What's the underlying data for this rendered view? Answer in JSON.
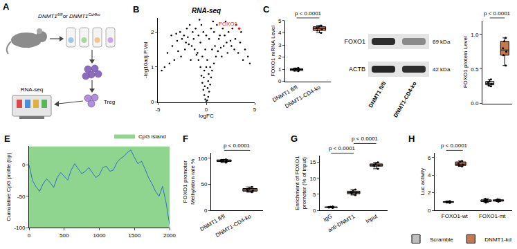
{
  "schematic": {
    "panel": "A",
    "genotypes": [
      {
        "base": "DNMT1",
        "sup": "fl/fl"
      },
      {
        "base": "DNMT1",
        "sup": "Cd4ko"
      }
    ],
    "joiner": "or",
    "steps": [
      "RNA-seq",
      "Treg"
    ]
  },
  "blot": {
    "rows": [
      {
        "name": "FOXO1",
        "size": "69 kDa"
      },
      {
        "name": "ACTB",
        "size": "42 kDa"
      }
    ],
    "lanes": [
      "DNMT1 fl/fl",
      "DNMT1-CD4-ko"
    ]
  },
  "chart_data": [
    {
      "panel": "B",
      "type": "scatter",
      "title": "RNA-seq",
      "color": "#000000",
      "x": [
        0,
        0.1,
        -0.1,
        0.2,
        -0.2,
        0.3,
        -0.3,
        0.4,
        -0.4,
        0.5,
        -0.5,
        0.6,
        -0.6,
        0.8,
        -0.8,
        1.0,
        -1.0,
        1.2,
        -1.2,
        1.5,
        -1.5,
        1.8,
        -1.8,
        2.1,
        -2.1,
        2.5,
        -2.5,
        3.0,
        -3.0,
        3.5,
        -3.5,
        4.0,
        -4.0,
        0.2,
        -0.2,
        0.1,
        -0.1,
        0.3,
        -0.3,
        0.5,
        -0.5,
        0.8,
        -0.8,
        1.1,
        -1.1,
        1.4,
        -1.4,
        1.7,
        -1.7,
        2.0,
        -2.0,
        2.3,
        -2.3,
        2.7,
        -2.7,
        3.1,
        -3.1,
        0.4,
        -0.4,
        0.6,
        -0.6,
        0.9,
        -0.9,
        1.3,
        -1.3,
        1.6,
        -1.6,
        2.2,
        -2.2,
        2.6,
        -2.6,
        3.3,
        -3.3,
        3.8,
        -3.8,
        4.3,
        -4.3,
        0.15,
        -0.15,
        0.25,
        -0.25,
        0.7,
        -0.7,
        1.9,
        -1.9,
        2.9,
        -2.9,
        0,
        0,
        3.6,
        -3.6,
        4.5,
        -4.6
      ],
      "values": [
        0.02,
        0.05,
        0.08,
        0.15,
        0.2,
        0.3,
        0.35,
        0.5,
        0.55,
        0.7,
        0.75,
        0.9,
        1.0,
        1.1,
        1.2,
        1.3,
        1.35,
        1.45,
        1.5,
        1.55,
        1.6,
        1.6,
        1.65,
        1.7,
        1.7,
        1.75,
        1.8,
        1.8,
        1.75,
        1.7,
        1.6,
        1.5,
        1.4,
        0.6,
        0.9,
        1.2,
        1.5,
        1.8,
        2.0,
        2.1,
        2.2,
        2.0,
        1.9,
        2.2,
        2.1,
        1.9,
        2.0,
        2.1,
        2.2,
        2.3,
        2.1,
        2.0,
        1.9,
        2.1,
        2.0,
        2.2,
        1.95,
        1.0,
        1.3,
        1.5,
        1.7,
        1.6,
        1.4,
        1.8,
        1.8,
        1.3,
        1.2,
        1.4,
        1.5,
        1.6,
        1.3,
        1.4,
        1.2,
        1.2,
        1.1,
        1.3,
        1.0,
        0.4,
        0.45,
        0.8,
        0.7,
        2.3,
        2.35,
        1.9,
        1.85,
        1.5,
        1.45,
        1.9,
        1.0,
        2.0,
        1.9,
        1.1,
        0.9
      ],
      "xlabel": "logFC",
      "ylabel": "-log10adj.P.Val",
      "xlim": [
        -5,
        5
      ],
      "xticks": [
        -5,
        0,
        5
      ],
      "ylim": [
        0,
        2.4
      ],
      "yticks": [
        0,
        1,
        2
      ],
      "annotations": [
        {
          "text": "FOXO1",
          "x": 3.4,
          "y": 2.1,
          "color": "#e8141c"
        }
      ]
    },
    {
      "panel": "C",
      "type": "box",
      "categories": [
        "DNMT1 fl/fl",
        "DNMT1-CD4-ko"
      ],
      "values": [
        [
          0.85,
          0.95,
          1.0,
          1.05,
          1.1,
          0.9
        ],
        [
          4.0,
          4.2,
          4.3,
          4.4,
          4.6,
          4.5
        ]
      ],
      "colors": [
        "#bfbfbf",
        "#c8794a"
      ],
      "ylabel": "FOXO1 mRNA Level",
      "ylim": [
        0,
        5
      ],
      "yticks": [
        0,
        1,
        2,
        3,
        4,
        5
      ],
      "comparisons": [
        {
          "groups": [
            0,
            1
          ],
          "label": "p < 0.0001"
        }
      ]
    },
    {
      "type": "box",
      "categories": [
        "DNMT1 fl/fl",
        "DNMT1-CD4-ko"
      ],
      "values": [
        [
          0.25,
          0.28,
          0.3,
          0.32,
          0.35,
          0.27
        ],
        [
          0.55,
          0.7,
          0.75,
          0.8,
          0.9,
          0.95
        ]
      ],
      "colors": [
        "#bfbfbf",
        "#c8794a"
      ],
      "ylabel": "FOXO1 protein Level",
      "tick_labels": "y",
      "ylim": [
        0,
        1.2
      ],
      "yticks": [
        {
          "value": 0,
          "label": "0.0"
        },
        {
          "value": 0.5,
          "label": "0.5"
        },
        {
          "value": 1,
          "label": "1.0"
        }
      ],
      "comparisons": [
        {
          "groups": [
            0,
            1
          ],
          "label": "p < 0.0001"
        }
      ]
    },
    {
      "panel": "E",
      "type": "line",
      "legend": "top right",
      "ylabel": "Cumulative CpG profile (bp)",
      "xlim": [
        0,
        2000
      ],
      "xticks": [
        0,
        500,
        1000,
        1500,
        2000
      ],
      "ylim": [
        -100,
        30
      ],
      "yticks": [
        -100,
        -50,
        0
      ],
      "series": [
        {
          "name": "CpG island",
          "type": "area",
          "color": "#8fd48f"
        },
        {
          "type": "line",
          "color": "#2f6fbf",
          "x": [
            0,
            50,
            100,
            150,
            200,
            250,
            300,
            350,
            400,
            450,
            500,
            550,
            600,
            650,
            700,
            750,
            800,
            850,
            900,
            950,
            1000,
            1050,
            1100,
            1150,
            1200,
            1250,
            1300,
            1350,
            1400,
            1450,
            1500,
            1550,
            1600,
            1650,
            1700,
            1750,
            1800,
            1850,
            1900,
            1950,
            2000
          ],
          "values": [
            0,
            -25,
            -35,
            -42,
            -30,
            -22,
            -28,
            -36,
            -20,
            -12,
            -18,
            -24,
            -8,
            2,
            -6,
            -14,
            -10,
            -4,
            -12,
            -20,
            -16,
            -4,
            -2,
            -10,
            -8,
            4,
            10,
            14,
            20,
            24,
            12,
            2,
            6,
            -6,
            -20,
            -30,
            -42,
            -50,
            -34,
            -60,
            -95
          ]
        }
      ]
    },
    {
      "panel": "F",
      "type": "box",
      "categories": [
        "DNMT1 fl/fl",
        "DNMT1-CD4-ko"
      ],
      "values": [
        [
          92,
          95,
          97,
          98,
          94,
          96
        ],
        [
          35,
          38,
          40,
          42,
          45,
          37
        ]
      ],
      "colors": [
        "#bfbfbf",
        "#c8794a"
      ],
      "ylabel": [
        "FOXO1 promoter",
        "Methylation rate %"
      ],
      "ylim": [
        0,
        110
      ],
      "yticks": [
        0,
        50,
        100
      ],
      "comparisons": [
        {
          "groups": [
            0,
            1
          ],
          "label": "p < 0.0001"
        }
      ]
    },
    {
      "panel": "G",
      "type": "box",
      "categories": [
        "IgG",
        "anti-DNMT1",
        "Input"
      ],
      "values": [
        [
          0.8,
          1.0,
          1.1,
          1.2,
          0.9,
          1.0
        ],
        [
          4.8,
          5.2,
          5.5,
          6.0,
          6.5,
          5.6
        ],
        [
          13,
          13.8,
          14,
          14.5,
          15,
          14.2
        ]
      ],
      "colors": [
        "#c8794a",
        "#c8794a",
        "#c8794a"
      ],
      "ylabel": [
        "Enrichment of FOXO1",
        "promoter (% of input)"
      ],
      "ylim": [
        0,
        17
      ],
      "yticks": [
        0,
        5,
        10,
        15
      ],
      "comparisons": [
        {
          "groups": [
            0,
            1
          ],
          "label": "p < 0.0001"
        },
        {
          "groups": [
            1,
            2
          ],
          "label": "p < 0.0001"
        }
      ]
    },
    {
      "panel": "H",
      "type": "box",
      "categories": [
        "FOXO1-wt",
        "FOXO1-mt"
      ],
      "legend": "bottom",
      "series": [
        {
          "name": "Scramble",
          "color": "#bfbfbf",
          "values": [
            [
              0.85,
              0.95,
              1.0,
              1.05,
              0.9,
              1.0
            ],
            [
              1.0,
              1.1,
              1.2,
              1.3,
              0.9,
              1.1
            ]
          ]
        },
        {
          "name": "DNMT1-kd",
          "color": "#c8794a",
          "values": [
            [
              5.0,
              5.2,
              5.3,
              5.5,
              5.6,
              5.1
            ],
            [
              1.0,
              1.1,
              1.15,
              1.25,
              1.05,
              1.2
            ]
          ]
        }
      ],
      "ylabel": "Luc activity",
      "ylim": [
        0,
        6.5
      ],
      "yticks": [
        0,
        2,
        4,
        6
      ],
      "comparisons": [
        {
          "category": 0,
          "label": "p < 0.0001"
        }
      ]
    }
  ]
}
